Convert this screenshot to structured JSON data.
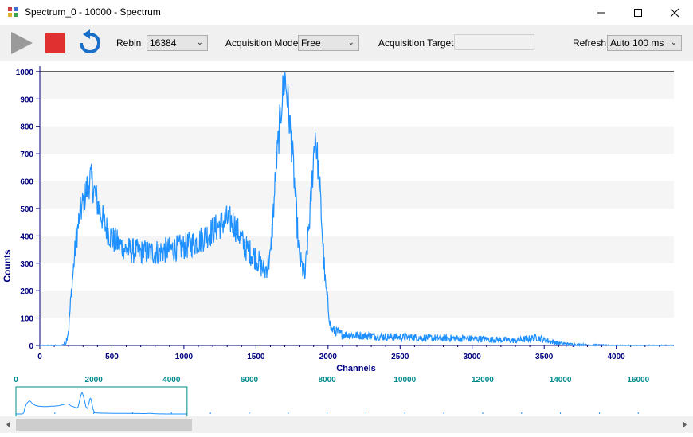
{
  "window": {
    "title": "Spectrum_0 - 10000 - Spectrum"
  },
  "toolbar": {
    "rebin_label": "Rebin",
    "rebin_value": "16384",
    "acq_mode_label": "Acquisition Mode",
    "acq_mode_value": "Free",
    "acq_target_label": "Acquisition Target",
    "acq_target_value": "",
    "refresh_label": "Refresh",
    "refresh_value": "Auto 100 ms"
  },
  "icons": [
    "play-icon",
    "stop-icon",
    "reset-icon",
    "minimize-icon",
    "maximize-icon",
    "close-icon"
  ],
  "colors": {
    "trace": "#1e90ff",
    "axis_text": "#000080",
    "overview_text": "#008b8b",
    "stop": "#e03030",
    "reset": "#1a6fc9"
  },
  "chart_data": {
    "type": "line",
    "xlabel": "Channels",
    "ylabel": "Counts",
    "xlim": [
      0,
      4400
    ],
    "ylim": [
      0,
      1020
    ],
    "xticks": [
      0,
      500,
      1000,
      1500,
      2000,
      2500,
      3000,
      3500,
      4000
    ],
    "yticks": [
      0,
      100,
      200,
      300,
      400,
      500,
      600,
      700,
      800,
      900,
      1000
    ],
    "grid": "horizontal-bands",
    "reference_line": 1000,
    "series": [
      {
        "x": [
          0,
          150,
          180,
          200,
          220,
          250,
          280,
          320,
          350,
          370,
          400,
          450,
          500,
          600,
          700,
          800,
          900,
          1000,
          1100,
          1200,
          1300,
          1340,
          1380,
          1420,
          1500,
          1560,
          1600,
          1640,
          1680,
          1700,
          1720,
          1760,
          1800,
          1840,
          1880,
          1910,
          1940,
          1980,
          2020,
          2100,
          2500,
          3000,
          3300,
          3400,
          3450,
          3500,
          3600,
          3700,
          4000,
          4400
        ],
        "y": [
          0,
          0,
          10,
          60,
          200,
          380,
          480,
          560,
          610,
          580,
          520,
          440,
          390,
          350,
          340,
          340,
          350,
          360,
          380,
          420,
          460,
          450,
          410,
          360,
          320,
          270,
          320,
          650,
          900,
          980,
          900,
          650,
          320,
          250,
          520,
          780,
          600,
          230,
          60,
          40,
          30,
          25,
          18,
          25,
          30,
          20,
          8,
          3,
          0,
          0
        ]
      }
    ]
  },
  "overview": {
    "xticks": [
      0,
      2000,
      4000,
      6000,
      8000,
      10000,
      12000,
      14000,
      16000
    ],
    "xlim": [
      0,
      16384
    ],
    "viewport": [
      0,
      4400
    ]
  },
  "scrollbar": {
    "position": 0
  }
}
